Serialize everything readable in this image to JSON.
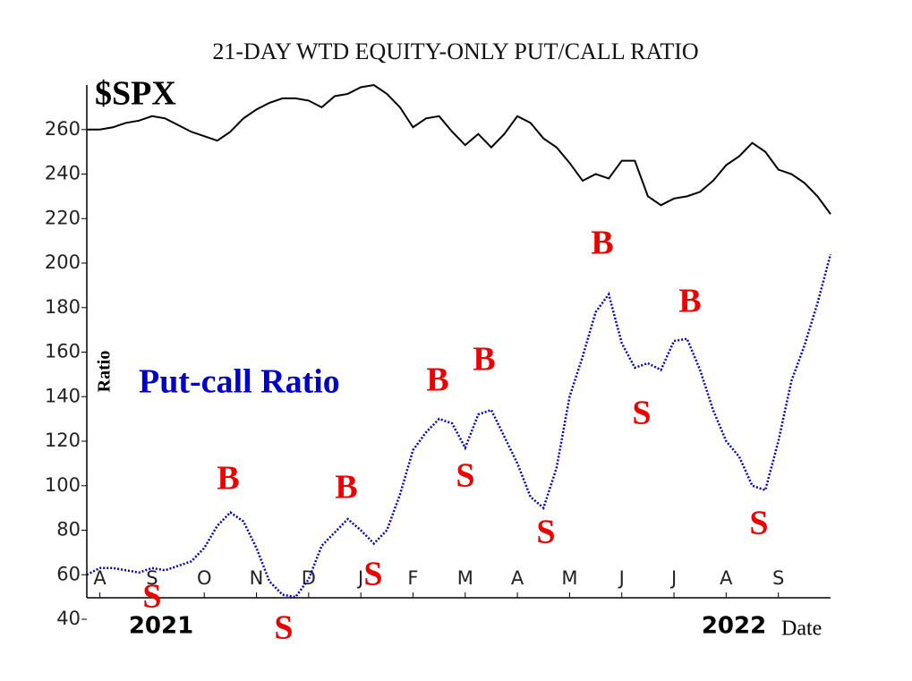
{
  "chart_data": {
    "type": "line",
    "title": "21-DAY WTD EQUITY-ONLY PUT/CALL RATIO",
    "y_label": "Ratio",
    "x_label": "Date",
    "year_labels": [
      "2021",
      "2022"
    ],
    "categories": [
      null,
      "A",
      null,
      null,
      null,
      "S",
      null,
      null,
      null,
      "O",
      null,
      null,
      null,
      "N",
      null,
      null,
      null,
      "D",
      null,
      null,
      null,
      "J",
      null,
      null,
      null,
      "F",
      null,
      null,
      null,
      "M",
      null,
      null,
      null,
      "A",
      null,
      null,
      null,
      "M",
      null,
      null,
      null,
      "J",
      null,
      null,
      null,
      "J",
      null,
      null,
      null,
      "A",
      null,
      null,
      null,
      "S",
      null,
      null,
      null,
      null
    ],
    "series": [
      {
        "name": "$SPX",
        "color": "#000000",
        "values": [
          260,
          260,
          261,
          263,
          264,
          266,
          265,
          262,
          259,
          257,
          255,
          259,
          265,
          269,
          272,
          274,
          274,
          273,
          270,
          275,
          276,
          279,
          280,
          276,
          270,
          261,
          265,
          266,
          259,
          253,
          258,
          252,
          258,
          266,
          263,
          256,
          252,
          245,
          237,
          240,
          238,
          246,
          246,
          230,
          226,
          229,
          230,
          232,
          237,
          244,
          248,
          254,
          250,
          242,
          240,
          236,
          230,
          222
        ]
      },
      {
        "name": "Put-call Ratio",
        "color": "#0000c8",
        "values": [
          60,
          63,
          63,
          62,
          61,
          63,
          62,
          64,
          66,
          72,
          82,
          88,
          84,
          72,
          57,
          51,
          50,
          58,
          73,
          79,
          85,
          80,
          74,
          80,
          96,
          116,
          124,
          130,
          128,
          117,
          132,
          134,
          122,
          110,
          95,
          90,
          108,
          140,
          158,
          178,
          186,
          164,
          153,
          155,
          152,
          165,
          166,
          152,
          134,
          120,
          113,
          100,
          98,
          120,
          147,
          163,
          182,
          204
        ]
      }
    ],
    "annotations": [
      "B",
      "B",
      "B",
      "B",
      "B",
      "B",
      "S",
      "S",
      "S",
      "S",
      "S",
      "S",
      "S"
    ],
    "ylim": [
      40,
      280
    ],
    "yticks": [
      40,
      60,
      80,
      100,
      120,
      140,
      160,
      180,
      200,
      220,
      240,
      260
    ]
  }
}
